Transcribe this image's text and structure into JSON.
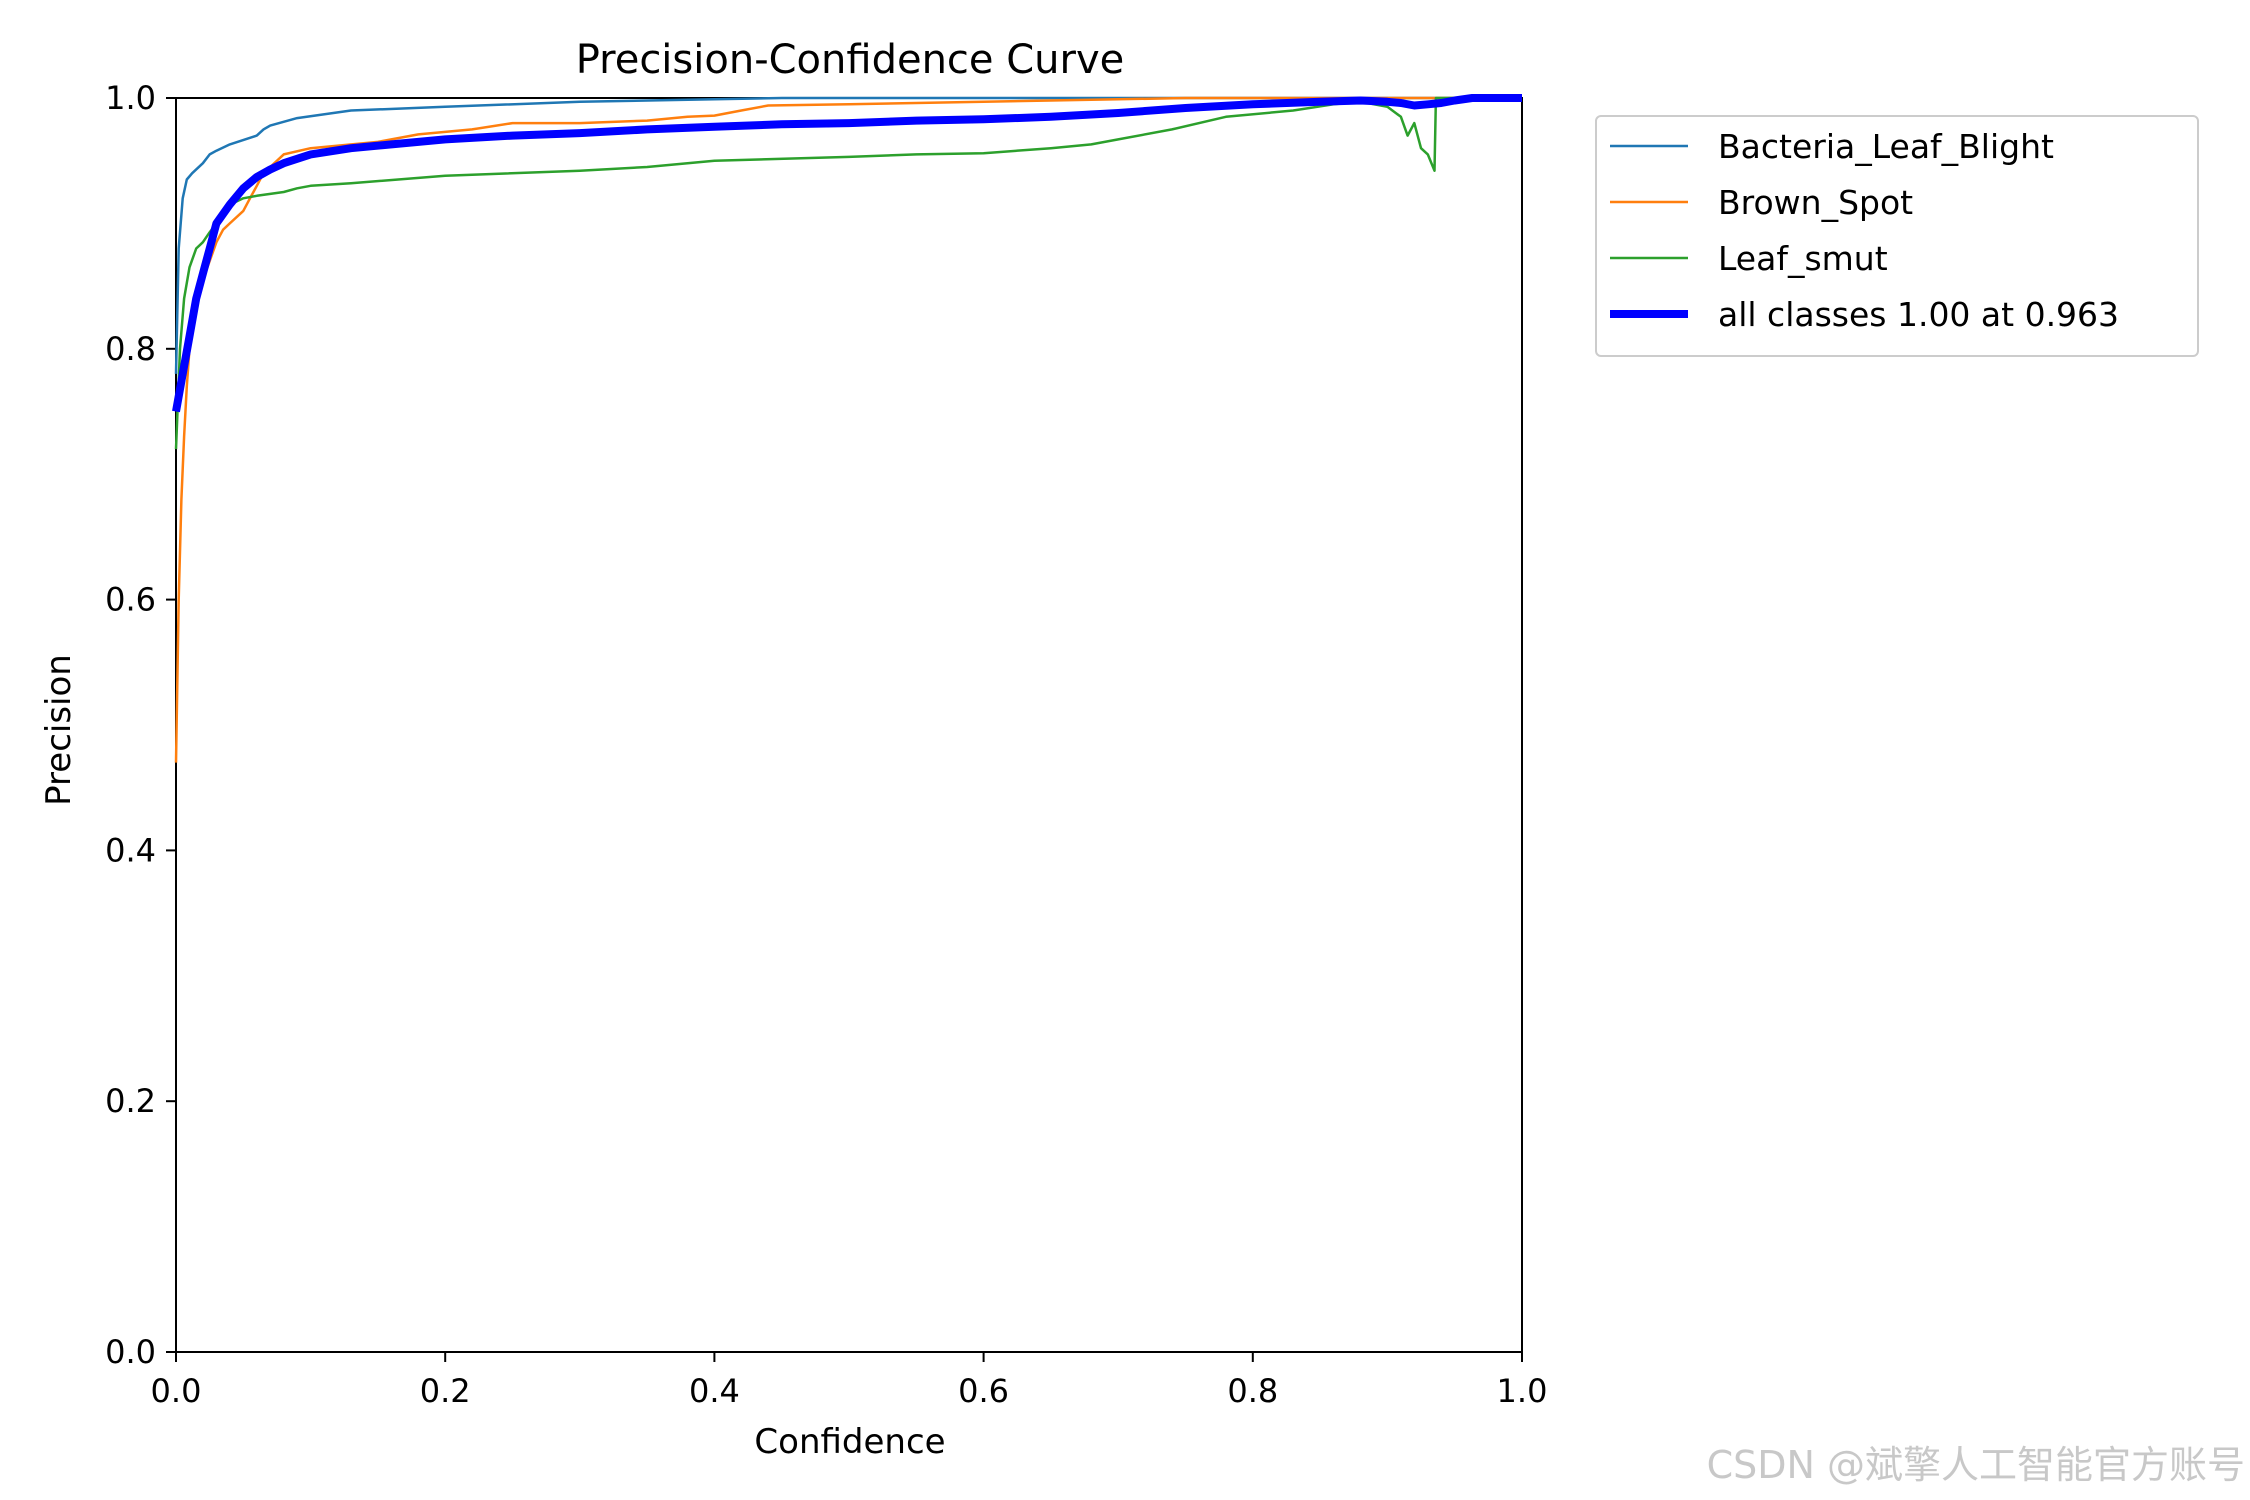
{
  "watermark": "CSDN @斌擎人工智能官方账号",
  "chart_data": {
    "type": "line",
    "title": "Precision-Confidence Curve",
    "xlabel": "Confidence",
    "ylabel": "Precision",
    "xlim": [
      0,
      1
    ],
    "ylim": [
      0,
      1
    ],
    "xticks": [
      "0.0",
      "0.2",
      "0.4",
      "0.6",
      "0.8",
      "1.0"
    ],
    "yticks": [
      "0.0",
      "0.2",
      "0.4",
      "0.6",
      "0.8",
      "1.0"
    ],
    "grid": false,
    "legend_position": "outside-top-right",
    "series": [
      {
        "name": "Bacteria_Leaf_Blight",
        "color": "#1f77b4",
        "width": "thin",
        "x": [
          0.0,
          0.002,
          0.005,
          0.008,
          0.012,
          0.02,
          0.025,
          0.03,
          0.04,
          0.06,
          0.065,
          0.07,
          0.09,
          0.13,
          0.2,
          0.3,
          0.4,
          0.45,
          0.6,
          0.8,
          1.0
        ],
        "y": [
          0.78,
          0.88,
          0.92,
          0.935,
          0.94,
          0.948,
          0.955,
          0.958,
          0.963,
          0.97,
          0.975,
          0.978,
          0.984,
          0.99,
          0.993,
          0.997,
          0.999,
          1.0,
          1.0,
          1.0,
          1.0
        ]
      },
      {
        "name": "Brown_Spot",
        "color": "#ff7f0e",
        "width": "thin",
        "x": [
          0.0,
          0.002,
          0.004,
          0.006,
          0.008,
          0.01,
          0.015,
          0.02,
          0.025,
          0.03,
          0.035,
          0.04,
          0.05,
          0.055,
          0.06,
          0.065,
          0.07,
          0.08,
          0.1,
          0.15,
          0.18,
          0.22,
          0.25,
          0.3,
          0.35,
          0.38,
          0.4,
          0.42,
          0.44,
          0.5,
          0.6,
          0.65,
          0.7,
          0.75,
          0.8,
          0.9,
          1.0
        ],
        "y": [
          0.47,
          0.6,
          0.68,
          0.73,
          0.77,
          0.8,
          0.835,
          0.855,
          0.87,
          0.885,
          0.895,
          0.9,
          0.91,
          0.92,
          0.93,
          0.94,
          0.945,
          0.955,
          0.96,
          0.965,
          0.971,
          0.975,
          0.98,
          0.98,
          0.982,
          0.985,
          0.986,
          0.99,
          0.994,
          0.995,
          0.997,
          0.998,
          0.999,
          1.0,
          1.0,
          1.0,
          1.0
        ]
      },
      {
        "name": "Leaf_smut",
        "color": "#2ca02c",
        "width": "thin",
        "x": [
          0.0,
          0.003,
          0.006,
          0.01,
          0.015,
          0.02,
          0.025,
          0.03,
          0.035,
          0.04,
          0.05,
          0.06,
          0.08,
          0.09,
          0.1,
          0.13,
          0.2,
          0.3,
          0.35,
          0.4,
          0.5,
          0.55,
          0.6,
          0.65,
          0.68,
          0.7,
          0.74,
          0.78,
          0.83,
          0.86,
          0.88,
          0.9,
          0.91,
          0.915,
          0.92,
          0.925,
          0.93,
          0.935,
          0.936,
          0.94,
          0.95,
          1.0
        ],
        "y": [
          0.72,
          0.8,
          0.84,
          0.865,
          0.88,
          0.885,
          0.893,
          0.9,
          0.91,
          0.915,
          0.92,
          0.922,
          0.925,
          0.928,
          0.93,
          0.932,
          0.938,
          0.942,
          0.945,
          0.95,
          0.953,
          0.955,
          0.956,
          0.96,
          0.963,
          0.967,
          0.975,
          0.985,
          0.99,
          0.995,
          0.997,
          0.993,
          0.985,
          0.97,
          0.98,
          0.96,
          0.955,
          0.942,
          1.0,
          1.0,
          1.0,
          1.0
        ]
      },
      {
        "name": "all classes 1.00 at 0.963",
        "color": "#0000ff",
        "width": "thick",
        "x": [
          0.0,
          0.005,
          0.01,
          0.015,
          0.02,
          0.025,
          0.03,
          0.04,
          0.05,
          0.06,
          0.07,
          0.08,
          0.1,
          0.13,
          0.16,
          0.2,
          0.25,
          0.3,
          0.35,
          0.4,
          0.45,
          0.5,
          0.55,
          0.6,
          0.65,
          0.7,
          0.75,
          0.8,
          0.85,
          0.88,
          0.9,
          0.91,
          0.92,
          0.93,
          0.94,
          0.95,
          0.963,
          1.0
        ],
        "y": [
          0.75,
          0.78,
          0.81,
          0.84,
          0.86,
          0.88,
          0.9,
          0.915,
          0.928,
          0.937,
          0.943,
          0.948,
          0.955,
          0.96,
          0.963,
          0.967,
          0.97,
          0.972,
          0.975,
          0.977,
          0.979,
          0.98,
          0.982,
          0.983,
          0.985,
          0.988,
          0.992,
          0.995,
          0.997,
          0.998,
          0.997,
          0.996,
          0.994,
          0.995,
          0.996,
          0.998,
          1.0,
          1.0
        ]
      }
    ]
  }
}
